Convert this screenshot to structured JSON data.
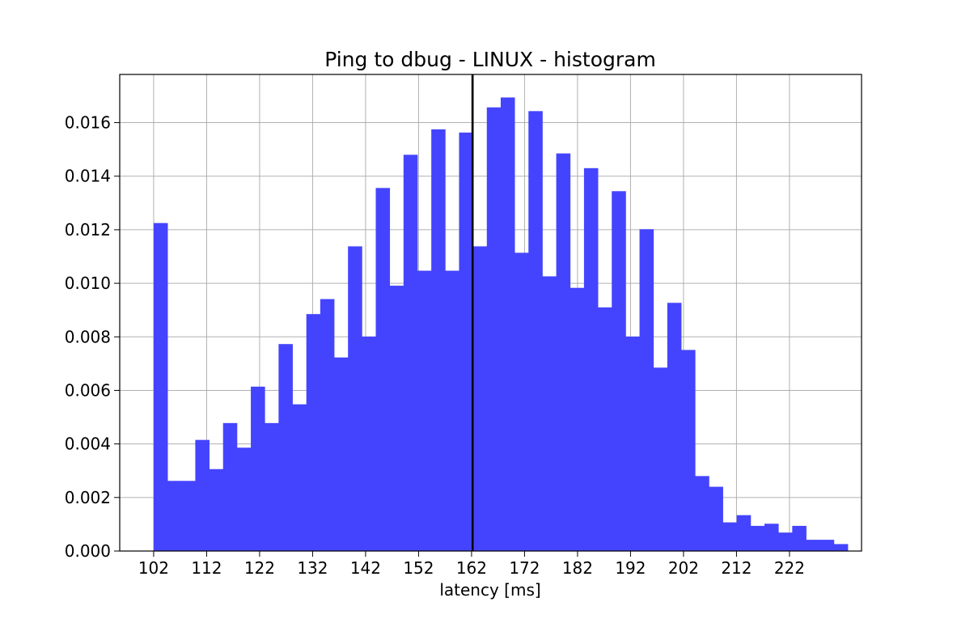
{
  "chart_data": {
    "type": "bar",
    "title": "Ping to dbug - LINUX - histogram",
    "xlabel": "latency [ms]",
    "ylabel": "",
    "x_ticks": [
      "102",
      "112",
      "122",
      "132",
      "142",
      "152",
      "162",
      "172",
      "182",
      "192",
      "202",
      "212",
      "222"
    ],
    "y_ticks": [
      "0.000",
      "0.002",
      "0.004",
      "0.006",
      "0.008",
      "0.010",
      "0.012",
      "0.014",
      "0.016"
    ],
    "xlim": [
      95.6,
      235.6
    ],
    "ylim": [
      0,
      0.0178
    ],
    "grid": true,
    "bar_color": "#4444ff",
    "marker_line_x": 162.2,
    "marker_line_color": "#000000",
    "bin_start": 102,
    "bin_width": 2.62,
    "values": [
      0.01225,
      0.00262,
      0.00262,
      0.00415,
      0.00306,
      0.00478,
      0.00386,
      0.00614,
      0.00478,
      0.00773,
      0.00548,
      0.00885,
      0.00941,
      0.00723,
      0.01138,
      0.00801,
      0.01356,
      0.00991,
      0.0148,
      0.01047,
      0.01575,
      0.01047,
      0.01563,
      0.01138,
      0.01657,
      0.01694,
      0.01114,
      0.01643,
      0.01026,
      0.01485,
      0.00983,
      0.0143,
      0.0091,
      0.01344,
      0.00801,
      0.01202,
      0.00685,
      0.00927,
      0.00751,
      0.0028,
      0.0024,
      0.00107,
      0.00134,
      0.00094,
      0.00102,
      0.00069,
      0.00094,
      0.00042,
      0.00042,
      0.00026
    ]
  }
}
